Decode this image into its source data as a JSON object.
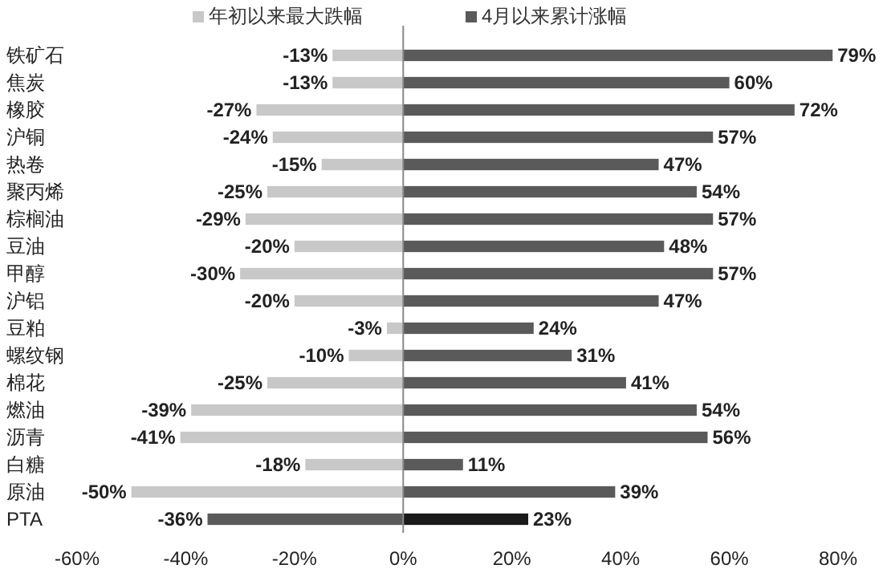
{
  "chart_data": {
    "type": "bar",
    "orientation": "horizontal",
    "stacked": true,
    "categories": [
      "铁矿石",
      "焦炭",
      "橡胶",
      "沪铜",
      "热卷",
      "聚丙烯",
      "棕榈油",
      "豆油",
      "甲醇",
      "沪铝",
      "豆粕",
      "螺纹钢",
      "棉花",
      "燃油",
      "沥青",
      "白糖",
      "原油",
      "PTA"
    ],
    "series": [
      {
        "name": "年初以来最大跌幅",
        "color": "#c8c8c8",
        "colors": [
          "#c8c8c8",
          "#c8c8c8",
          "#c8c8c8",
          "#c8c8c8",
          "#c8c8c8",
          "#c8c8c8",
          "#c8c8c8",
          "#c8c8c8",
          "#c8c8c8",
          "#c8c8c8",
          "#c8c8c8",
          "#c8c8c8",
          "#c8c8c8",
          "#c8c8c8",
          "#c8c8c8",
          "#c8c8c8",
          "#c8c8c8",
          "#5a5a5a"
        ],
        "values": [
          -13,
          -13,
          -27,
          -24,
          -15,
          -25,
          -29,
          -20,
          -30,
          -20,
          -3,
          -10,
          -25,
          -39,
          -41,
          -18,
          -50,
          -36
        ],
        "value_labels": [
          "-13%",
          "-13%",
          "-27%",
          "-24%",
          "-15%",
          "-25%",
          "-29%",
          "-20%",
          "-30%",
          "-20%",
          "-3%",
          "-10%",
          "-25%",
          "-39%",
          "-41%",
          "-18%",
          "-50%",
          "-36%"
        ]
      },
      {
        "name": "4月以来累计涨幅",
        "color": "#5a5a5a",
        "colors": [
          "#5a5a5a",
          "#5a5a5a",
          "#5a5a5a",
          "#5a5a5a",
          "#5a5a5a",
          "#5a5a5a",
          "#5a5a5a",
          "#5a5a5a",
          "#5a5a5a",
          "#5a5a5a",
          "#5a5a5a",
          "#5a5a5a",
          "#5a5a5a",
          "#5a5a5a",
          "#5a5a5a",
          "#5a5a5a",
          "#5a5a5a",
          "#1a1a1a"
        ],
        "values": [
          79,
          60,
          72,
          57,
          47,
          54,
          57,
          48,
          57,
          47,
          24,
          31,
          41,
          54,
          56,
          11,
          39,
          23
        ],
        "value_labels": [
          "79%",
          "60%",
          "72%",
          "57%",
          "47%",
          "54%",
          "57%",
          "48%",
          "57%",
          "47%",
          "24%",
          "31%",
          "41%",
          "54%",
          "56%",
          "11%",
          "39%",
          "23%"
        ]
      }
    ],
    "xlim": [
      -60,
      80
    ],
    "xticks": [
      {
        "value": -60,
        "label": "-60%"
      },
      {
        "value": -40,
        "label": "-40%"
      },
      {
        "value": -20,
        "label": "-20%"
      },
      {
        "value": 0,
        "label": "0%"
      },
      {
        "value": 20,
        "label": "20%"
      },
      {
        "value": 40,
        "label": "40%"
      },
      {
        "value": 60,
        "label": "60%"
      },
      {
        "value": 80,
        "label": "80%"
      }
    ],
    "legend": "top"
  }
}
